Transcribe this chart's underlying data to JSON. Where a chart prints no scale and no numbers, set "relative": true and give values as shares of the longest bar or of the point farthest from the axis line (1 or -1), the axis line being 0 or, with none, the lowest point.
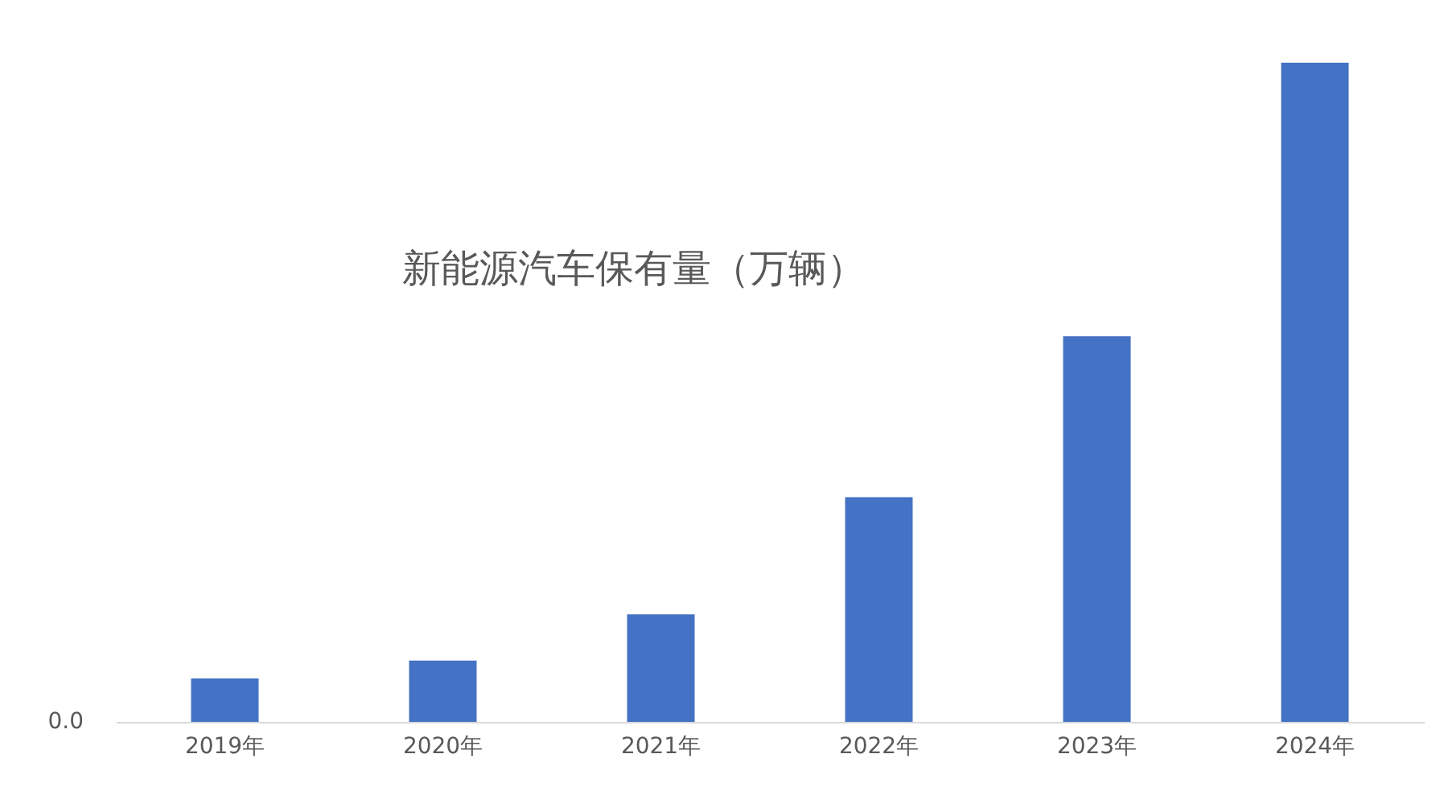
{
  "chart_data": {
    "type": "bar",
    "title": "新能源汽车保有量（万辆）",
    "categories": [
      "2019年",
      "2020年",
      "2021年",
      "2022年",
      "2023年",
      "2024年"
    ],
    "values": [
      0.066,
      0.093,
      0.163,
      0.341,
      0.585,
      1
    ],
    "color": "#4472c4",
    "relative": true,
    "grid": false,
    "annotations": [
      "0.0"
    ]
  }
}
